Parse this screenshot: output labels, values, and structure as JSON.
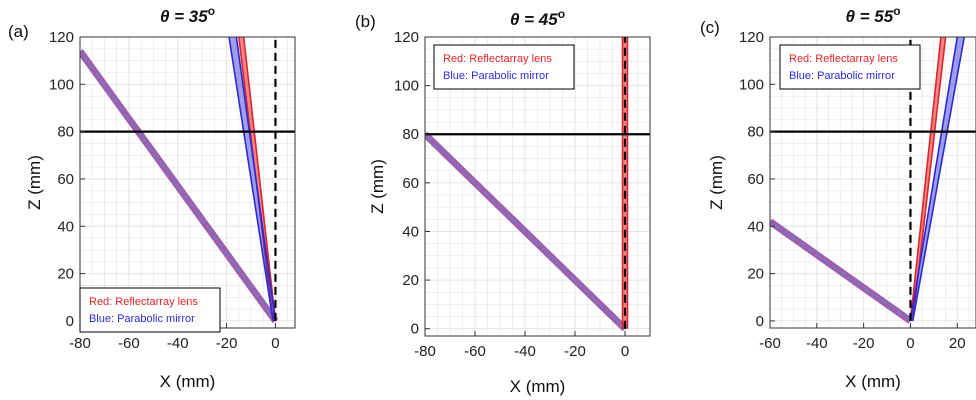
{
  "colors": {
    "red": "#e0262a",
    "blue": "#2b2bd6",
    "band": "#a05fae",
    "band_center": "#5f86c8",
    "grid": "#e4e4e4",
    "black": "#000000"
  },
  "chart_data": [
    {
      "type": "line",
      "panel_label": "(a)",
      "title_prefix": "θ = 35",
      "title_sup": "o",
      "xlabel": "X (mm)",
      "ylabel": "Z (mm)",
      "xlim": [
        -80,
        8
      ],
      "ylim": [
        -3,
        120
      ],
      "xticks": [
        -80,
        -60,
        -40,
        -20,
        0
      ],
      "yticks": [
        0,
        20,
        40,
        60,
        80,
        100,
        120
      ],
      "grid": true,
      "horizontal_line": 80,
      "vertical_dashed_x": 0,
      "incident": {
        "from": [
          0,
          0
        ],
        "to": [
          -80,
          114
        ]
      },
      "red_rays": [
        [
          [
            -1,
            0
          ],
          [
            -15,
            120
          ]
        ],
        [
          [
            0,
            0
          ],
          [
            -13,
            120
          ]
        ]
      ],
      "blue_rays": [
        [
          [
            -1,
            0
          ],
          [
            -19,
            120
          ]
        ],
        [
          [
            0,
            0
          ],
          [
            -16,
            120
          ]
        ]
      ],
      "legend": {
        "position": "bottom-left",
        "red_label": "Red: Reflectarray lens",
        "blue_label": "Blue: Parabolic mirror"
      }
    },
    {
      "type": "line",
      "panel_label": "(b)",
      "title_prefix": "θ = 45",
      "title_sup": "o",
      "xlabel": "X (mm)",
      "ylabel": "Z (mm)",
      "xlim": [
        -80,
        10
      ],
      "ylim": [
        -3,
        120
      ],
      "xticks": [
        -80,
        -60,
        -40,
        -20,
        0
      ],
      "yticks": [
        0,
        20,
        40,
        60,
        80,
        100,
        120
      ],
      "grid": true,
      "horizontal_line": 80,
      "vertical_dashed_x": 0,
      "incident": {
        "from": [
          0,
          0
        ],
        "to": [
          -80,
          80
        ]
      },
      "red_rays": [
        [
          [
            -1,
            0
          ],
          [
            -1,
            120
          ]
        ],
        [
          [
            1,
            0
          ],
          [
            1,
            120
          ]
        ]
      ],
      "blue_rays": [],
      "legend": {
        "position": "top-left",
        "red_label": "Red: Reflectarray lens",
        "blue_label": "Blue: Parabolic mirror"
      }
    },
    {
      "type": "line",
      "panel_label": "(c)",
      "title_prefix": "θ = 55",
      "title_sup": "o",
      "xlabel": "X (mm)",
      "ylabel": "Z (mm)",
      "xlim": [
        -60,
        28
      ],
      "ylim": [
        -3,
        120
      ],
      "xticks": [
        -60,
        -40,
        -20,
        0,
        20
      ],
      "yticks": [
        0,
        20,
        40,
        60,
        80,
        100,
        120
      ],
      "grid": true,
      "horizontal_line": 80,
      "vertical_dashed_x": 0,
      "incident": {
        "from": [
          0,
          0
        ],
        "to": [
          -60,
          42
        ]
      },
      "red_rays": [
        [
          [
            0,
            0
          ],
          [
            13,
            120
          ]
        ],
        [
          [
            1,
            0
          ],
          [
            15,
            120
          ]
        ]
      ],
      "blue_rays": [
        [
          [
            0,
            0
          ],
          [
            20,
            120
          ]
        ],
        [
          [
            1,
            0
          ],
          [
            23,
            120
          ]
        ]
      ],
      "legend": {
        "position": "top-left",
        "red_label": "Red: Reflectarray lens",
        "blue_label": "Blue: Parabolic mirror"
      }
    }
  ]
}
